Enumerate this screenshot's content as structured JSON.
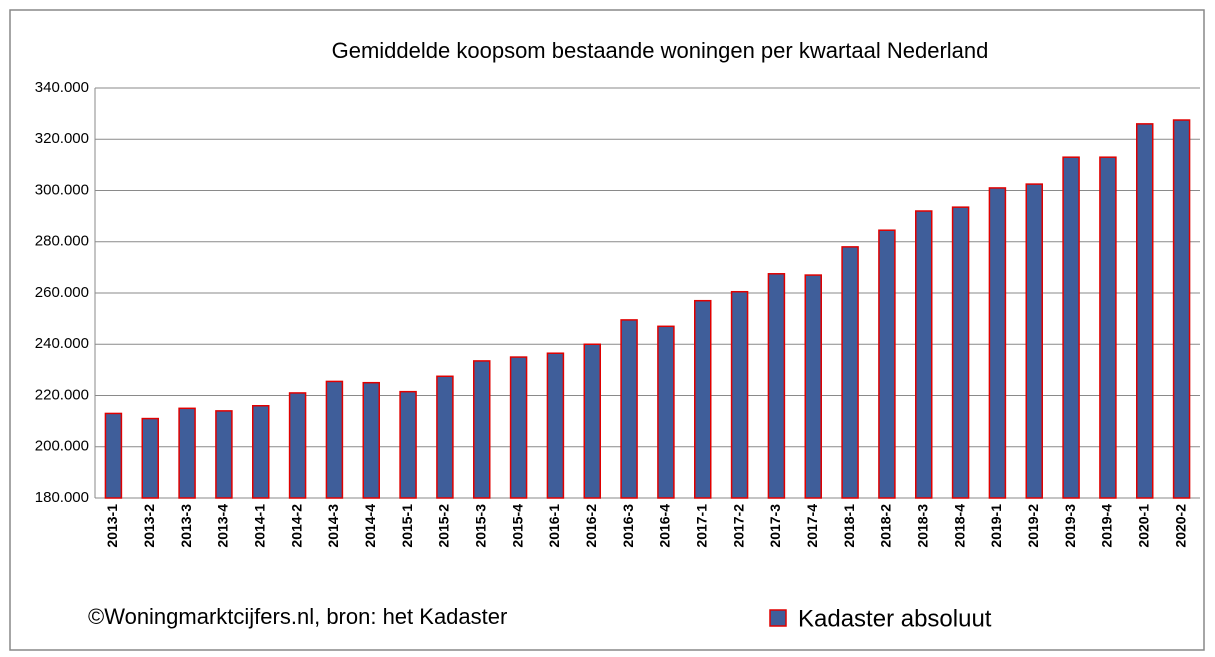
{
  "chart_data": {
    "type": "bar",
    "title": "Gemiddelde koopsom bestaande woningen per kwartaal Nederland",
    "categories": [
      "2013-1",
      "2013-2",
      "2013-3",
      "2013-4",
      "2014-1",
      "2014-2",
      "2014-3",
      "2014-4",
      "2015-1",
      "2015-2",
      "2015-3",
      "2015-4",
      "2016-1",
      "2016-2",
      "2016-3",
      "2016-4",
      "2017-1",
      "2017-2",
      "2017-3",
      "2017-4",
      "2018-1",
      "2018-2",
      "2018-3",
      "2018-4",
      "2019-1",
      "2019-2",
      "2019-3",
      "2019-4",
      "2020-1",
      "2020-2"
    ],
    "series": [
      {
        "name": "Kadaster absoluut",
        "color": "#3f5e9a",
        "edgecolor": "#e00000",
        "values": [
          213000,
          211000,
          215000,
          214000,
          216000,
          221000,
          225500,
          225000,
          221500,
          227500,
          233500,
          235000,
          236500,
          240000,
          249500,
          247000,
          257000,
          260500,
          267500,
          267000,
          278000,
          284500,
          292000,
          293500,
          301000,
          302500,
          313000,
          313000,
          326000,
          327500
        ]
      }
    ],
    "ylim": [
      180000,
      340000
    ],
    "yticks": [
      {
        "value": 180000,
        "label": "180.000"
      },
      {
        "value": 200000,
        "label": "200.000"
      },
      {
        "value": 220000,
        "label": "220.000"
      },
      {
        "value": 240000,
        "label": "240.000"
      },
      {
        "value": 260000,
        "label": "260.000"
      },
      {
        "value": 280000,
        "label": "280.000"
      },
      {
        "value": 300000,
        "label": "300.000"
      },
      {
        "value": 320000,
        "label": "320.000"
      },
      {
        "value": 340000,
        "label": "340.000"
      }
    ],
    "grid": true,
    "annotations": [
      "©Woningmarktcijfers.nl, bron: het Kadaster"
    ]
  }
}
